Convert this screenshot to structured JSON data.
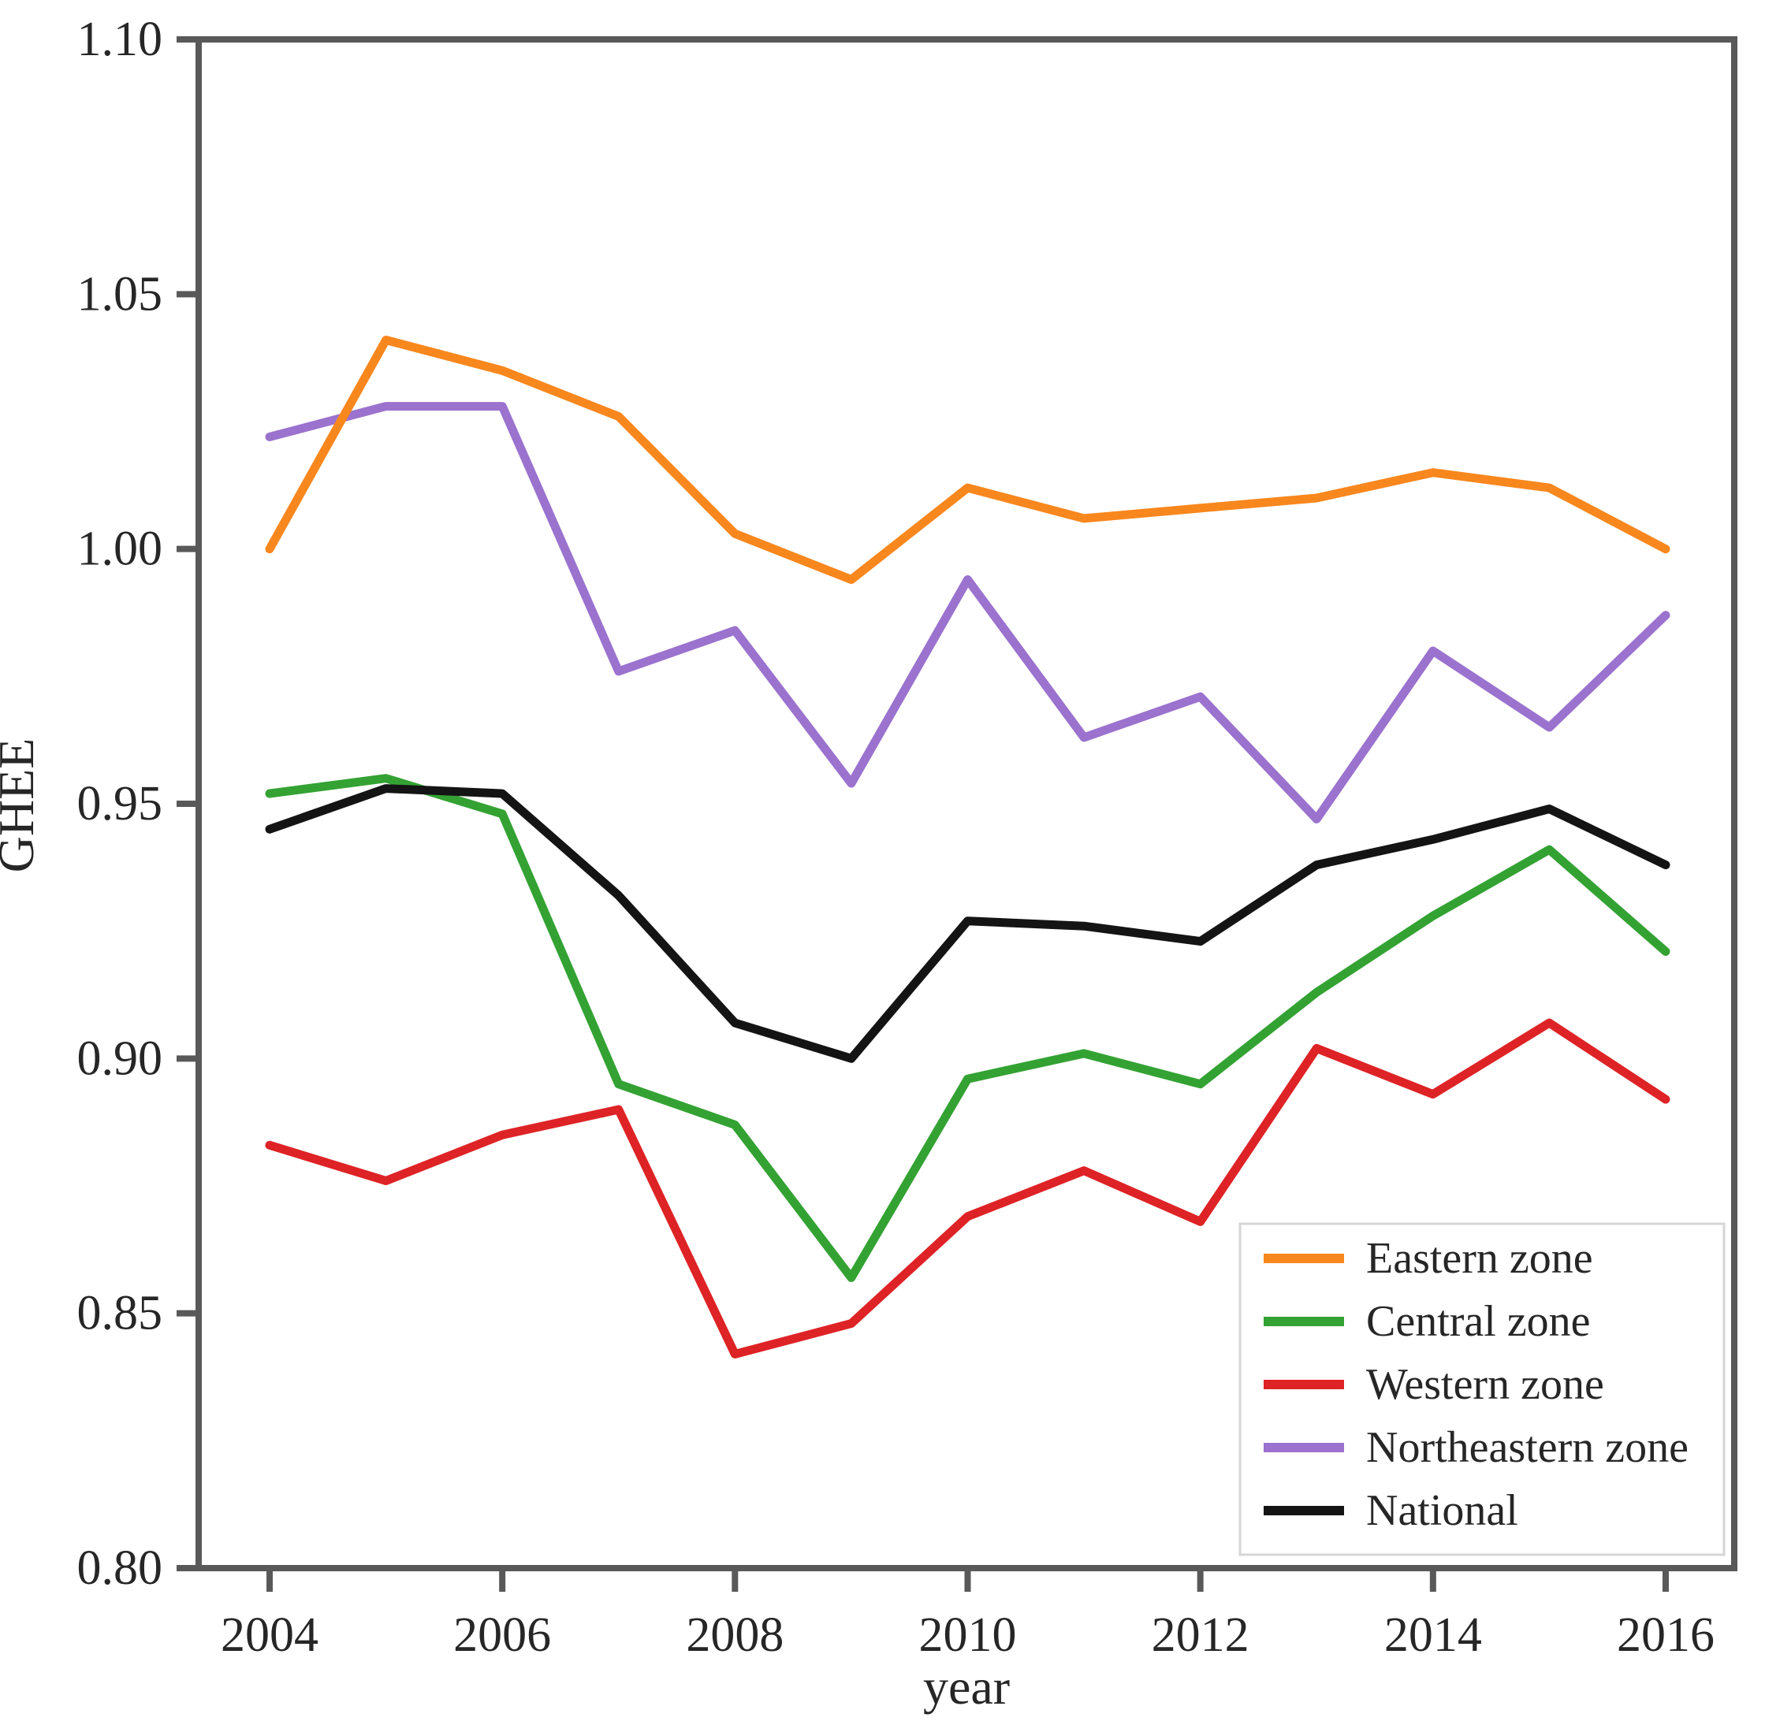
{
  "figure": {
    "y_axis_title": "GHEE",
    "x_axis_title": "year"
  },
  "axes": {
    "y_tick_labels": [
      "1.10",
      "1.05",
      "1.00",
      "0.95",
      "0.90",
      "0.85",
      "0.80"
    ],
    "y_tick_values": [
      1.1,
      1.05,
      1.0,
      0.95,
      0.9,
      0.85,
      0.8
    ],
    "x_tick_labels": [
      "2004",
      "2006",
      "2008",
      "2010",
      "2012",
      "2014",
      "2016"
    ],
    "x_tick_values": [
      2004,
      2006,
      2008,
      2010,
      2012,
      2014,
      2016
    ],
    "spine_color": "#595959",
    "tick_text_color": "#262626"
  },
  "legend": {
    "position": "lower-right",
    "border_color": "#d6d6d6",
    "background": "#ffffff",
    "entries": [
      {
        "label": "Eastern zone",
        "color": "#f8871e"
      },
      {
        "label": "Central zone",
        "color": "#33a233"
      },
      {
        "label": "Western zone",
        "color": "#de2326"
      },
      {
        "label": "Northeastern zone",
        "color": "#9b72ce"
      },
      {
        "label": "National",
        "color": "#141414"
      }
    ]
  },
  "chart_data": {
    "type": "line",
    "title": "",
    "xlabel": "year",
    "ylabel": "GHEE",
    "x": [
      2004,
      2005,
      2006,
      2007,
      2008,
      2009,
      2010,
      2011,
      2012,
      2013,
      2014,
      2015,
      2016
    ],
    "xlim": [
      2003.35,
      2016.6
    ],
    "ylim": [
      0.8,
      1.1
    ],
    "grid": false,
    "legend_position": "lower right",
    "series": [
      {
        "name": "Eastern zone",
        "color": "#f8871e",
        "values": [
          1.0,
          1.041,
          1.035,
          1.026,
          1.003,
          0.994,
          1.012,
          1.006,
          1.008,
          1.01,
          1.015,
          1.012,
          1.0
        ]
      },
      {
        "name": "Central zone",
        "color": "#33a233",
        "values": [
          0.952,
          0.955,
          0.948,
          0.895,
          0.887,
          0.857,
          0.896,
          0.901,
          0.895,
          0.913,
          0.928,
          0.941,
          0.921
        ]
      },
      {
        "name": "Western zone",
        "color": "#de2326",
        "values": [
          0.883,
          0.876,
          0.885,
          0.89,
          0.842,
          0.848,
          0.869,
          0.878,
          0.868,
          0.902,
          0.893,
          0.907,
          0.892
        ]
      },
      {
        "name": "Northeastern zone",
        "color": "#9b72ce",
        "values": [
          1.022,
          1.028,
          1.028,
          0.976,
          0.984,
          0.954,
          0.994,
          0.963,
          0.971,
          0.947,
          0.98,
          0.965,
          0.987
        ]
      },
      {
        "name": "National",
        "color": "#141414",
        "values": [
          0.945,
          0.953,
          0.952,
          0.932,
          0.907,
          0.9,
          0.927,
          0.926,
          0.923,
          0.938,
          0.943,
          0.949,
          0.938
        ]
      }
    ]
  }
}
